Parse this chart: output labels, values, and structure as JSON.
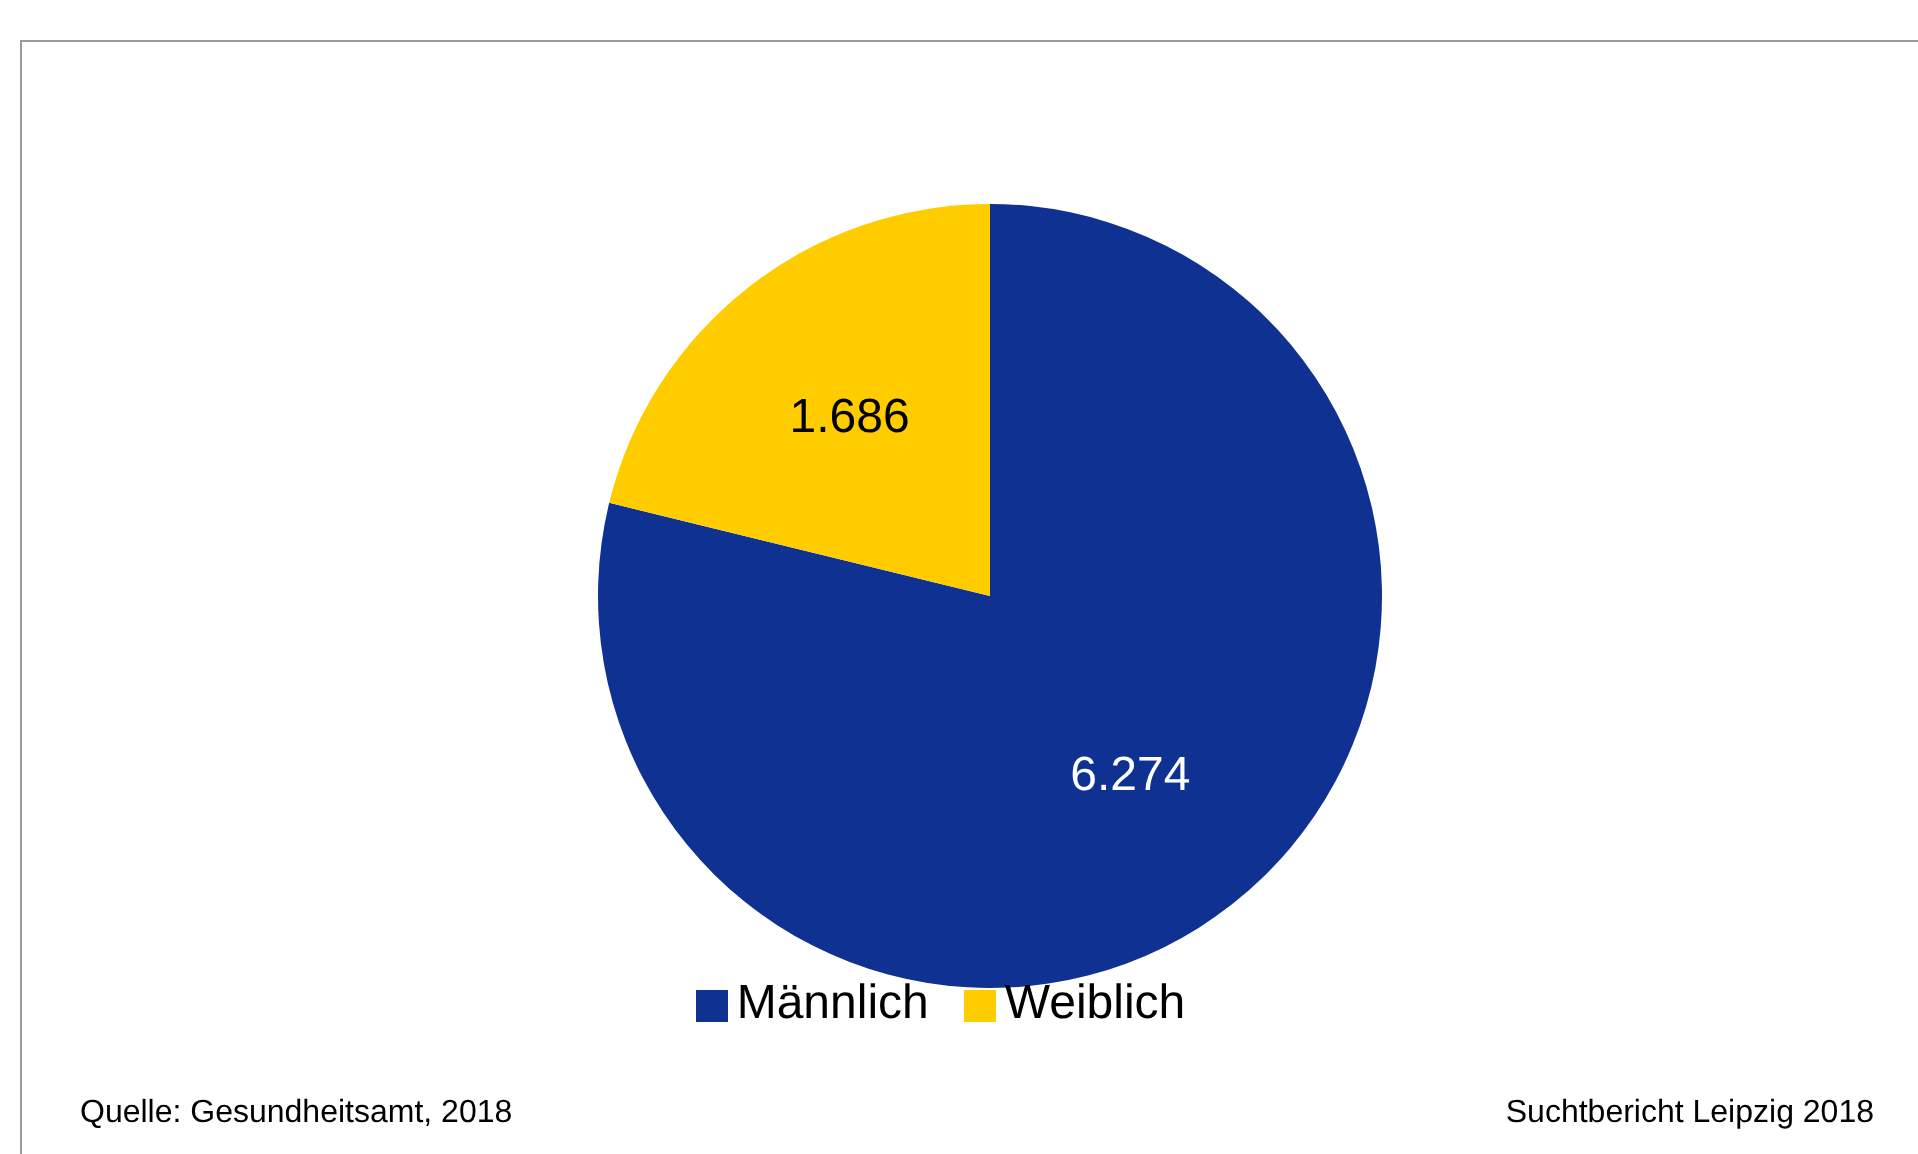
{
  "chart_data": {
    "type": "pie",
    "categories": [
      "Männlich",
      "Weiblich"
    ],
    "values": [
      6274,
      1686
    ],
    "colors": [
      "#0f3192",
      "#ffcc00"
    ],
    "value_labels": [
      "6.274",
      "1.686"
    ],
    "legend": "bottom",
    "annotations": [
      "Quelle: Gesundheitsamt, 2018",
      "Suchtbericht Leipzig 2018"
    ]
  }
}
